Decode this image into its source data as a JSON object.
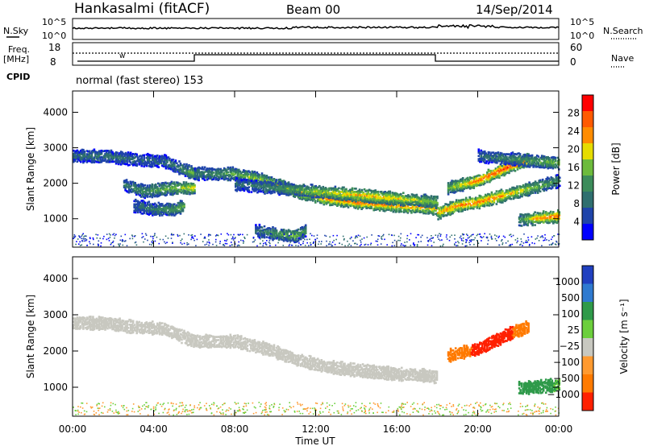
{
  "header": {
    "station": "Hankasalmi (fitACF)",
    "beam": "Beam 00",
    "date": "14/Sep/2014"
  },
  "strip_labels": {
    "nsky": "N.Sky",
    "nsky_ticks": [
      "10^5",
      "10^0"
    ],
    "nsearch": "N.Search",
    "nsearch_ticks": [
      "10^5",
      "10^0"
    ],
    "freq": "Freq.",
    "freq_unit": "[MHz]",
    "freq_ticks": [
      "18",
      "8"
    ],
    "nave": "Nave",
    "nave_ticks": [
      "60",
      "0"
    ],
    "cpid": "CPID",
    "cpid_text": "normal (fast stereo) 153"
  },
  "colors": {
    "background_scatter": "#c8c8c0",
    "power_scale": [
      "#0000ff",
      "#1f44aa",
      "#2f6f6f",
      "#3c8c5a",
      "#6dbb3c",
      "#e6dc00",
      "#ff8c00",
      "#ff5a00",
      "#ff0000"
    ],
    "velocity_scale": [
      "#2040c0",
      "#2f7ad0",
      "#2f9a4a",
      "#6ccf3c",
      "#c8c8c0",
      "#ff9a30",
      "#ff7a00",
      "#ff2000"
    ]
  },
  "chart_data": [
    {
      "type": "heatmap",
      "panel": "power",
      "ylabel": "Slant Range [km]",
      "xlabel": "",
      "x_ticks": [
        "00:00",
        "04:00",
        "08:00",
        "12:00",
        "16:00",
        "20:00",
        "00:00"
      ],
      "xlim": [
        0,
        24
      ],
      "ylim": [
        200,
        4600
      ],
      "y_ticks": [
        1000,
        2000,
        3000,
        4000
      ],
      "colorbar": {
        "label": "Power [dB]",
        "ticks": [
          4,
          8,
          12,
          16,
          20,
          24,
          28
        ]
      },
      "echo_bands": [
        {
          "t": [
            0,
            1.5,
            3,
            4.5,
            5.5,
            6
          ],
          "r": [
            2800,
            2800,
            2700,
            2650,
            2400,
            2300
          ],
          "power": [
            8,
            10,
            8,
            8,
            12,
            16
          ]
        },
        {
          "t": [
            2.5,
            3.5,
            5,
            6
          ],
          "r": [
            2000,
            1800,
            1900,
            1900
          ],
          "power": [
            10,
            12,
            16,
            22
          ]
        },
        {
          "t": [
            3,
            4,
            5,
            5.5
          ],
          "r": [
            1400,
            1300,
            1300,
            1400
          ],
          "power": [
            8,
            10,
            14,
            16
          ]
        },
        {
          "t": [
            6,
            8,
            9.5,
            11,
            12.5,
            14,
            16,
            17.5,
            18
          ],
          "r": [
            2300,
            2300,
            2100,
            1800,
            1600,
            1500,
            1400,
            1350,
            1300
          ],
          "power": [
            10,
            14,
            18,
            22,
            24,
            26,
            24,
            22,
            20
          ]
        },
        {
          "t": [
            8,
            10,
            12,
            14,
            16,
            18
          ],
          "r": [
            2000,
            1900,
            1800,
            1700,
            1600,
            1500
          ],
          "power": [
            8,
            12,
            18,
            22,
            20,
            16
          ]
        },
        {
          "t": [
            9,
            10,
            11,
            11.5
          ],
          "r": [
            700,
            600,
            550,
            700
          ],
          "power": [
            8,
            14,
            16,
            12
          ]
        },
        {
          "t": [
            18,
            19,
            20,
            21,
            22,
            23,
            24
          ],
          "r": [
            1200,
            1400,
            1500,
            1650,
            1800,
            1950,
            2100
          ],
          "power": [
            22,
            24,
            26,
            24,
            20,
            16,
            12
          ]
        },
        {
          "t": [
            18.5,
            20,
            21.5,
            22.5
          ],
          "r": [
            1900,
            2100,
            2500,
            2700
          ],
          "power": [
            16,
            26,
            28,
            28
          ]
        },
        {
          "t": [
            20,
            22,
            24
          ],
          "r": [
            2800,
            2700,
            2600
          ],
          "power": [
            8,
            12,
            16
          ]
        },
        {
          "t": [
            22,
            23,
            24
          ],
          "r": [
            1000,
            1050,
            1100
          ],
          "power": [
            12,
            24,
            26
          ]
        }
      ]
    },
    {
      "type": "heatmap",
      "panel": "velocity",
      "ylabel": "Slant Range [km]",
      "xlabel": "Time UT",
      "x_ticks": [
        "00:00",
        "04:00",
        "08:00",
        "12:00",
        "16:00",
        "20:00",
        "00:00"
      ],
      "xlim": [
        0,
        24
      ],
      "ylim": [
        200,
        4600
      ],
      "y_ticks": [
        1000,
        2000,
        3000,
        4000
      ],
      "colorbar": {
        "label": "Velocity [m s⁻¹]",
        "ticks": [
          "1000",
          "500",
          "100",
          "25",
          "−25",
          "−100",
          "−500",
          "−1000"
        ]
      },
      "echo_bands": [
        {
          "t": [
            0,
            1.5,
            3,
            4.5,
            5.5,
            6
          ],
          "r": [
            2800,
            2800,
            2700,
            2650,
            2400,
            2300
          ],
          "velocity": [
            0,
            0,
            0,
            0,
            0,
            0
          ]
        },
        {
          "t": [
            6,
            8,
            9.5,
            11,
            12.5,
            14,
            16,
            17.5,
            18
          ],
          "r": [
            2300,
            2300,
            2100,
            1800,
            1600,
            1500,
            1400,
            1350,
            1300
          ],
          "velocity": [
            0,
            0,
            0,
            0,
            0,
            0,
            0,
            0,
            0
          ]
        },
        {
          "t": [
            18.5,
            20,
            21.5,
            22.5
          ],
          "r": [
            1900,
            2100,
            2500,
            2700
          ],
          "velocity": [
            -200,
            -600,
            -600,
            -100
          ]
        },
        {
          "t": [
            22,
            23,
            24
          ],
          "r": [
            1000,
            1050,
            1100
          ],
          "velocity": [
            150,
            150,
            100
          ]
        }
      ]
    }
  ]
}
